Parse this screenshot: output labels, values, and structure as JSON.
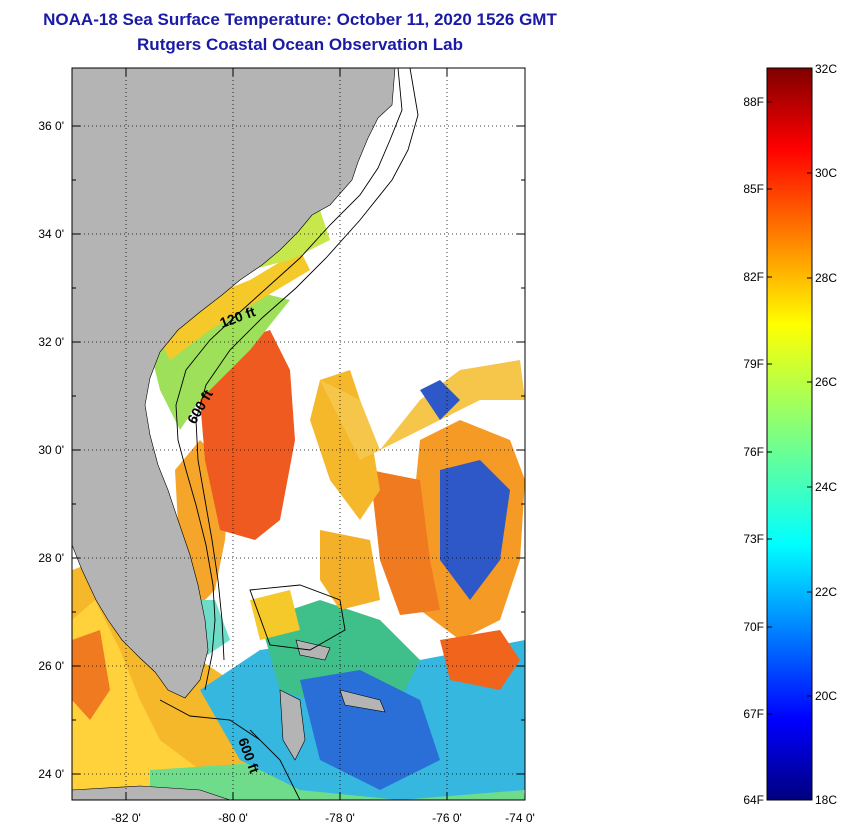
{
  "title": {
    "line1": "NOAA-18 Sea Surface Temperature:  October 11, 2020 1526 GMT",
    "line2": "Rutgers Coastal Ocean Observation Lab"
  },
  "map": {
    "lat_labels": [
      "36 0'",
      "34 0'",
      "32 0'",
      "30 0'",
      "28 0'",
      "26 0'",
      "24 0'"
    ],
    "lon_labels": [
      "-82 0'",
      "-80 0'",
      "-78 0'",
      "-76 0'",
      "-74 0'"
    ],
    "depth_labels": [
      "120 ft",
      "600 ft",
      "600 ft"
    ],
    "land_color": "#b4b4b4",
    "grid": "dotted"
  },
  "colorbar": {
    "f_labels": [
      "88F",
      "85F",
      "82F",
      "79F",
      "76F",
      "73F",
      "70F",
      "67F",
      "64F"
    ],
    "c_labels": [
      "32C",
      "30C",
      "28C",
      "26C",
      "24C",
      "22C",
      "20C",
      "18C"
    ],
    "range_c": [
      18,
      32
    ],
    "colormap": "jet"
  }
}
